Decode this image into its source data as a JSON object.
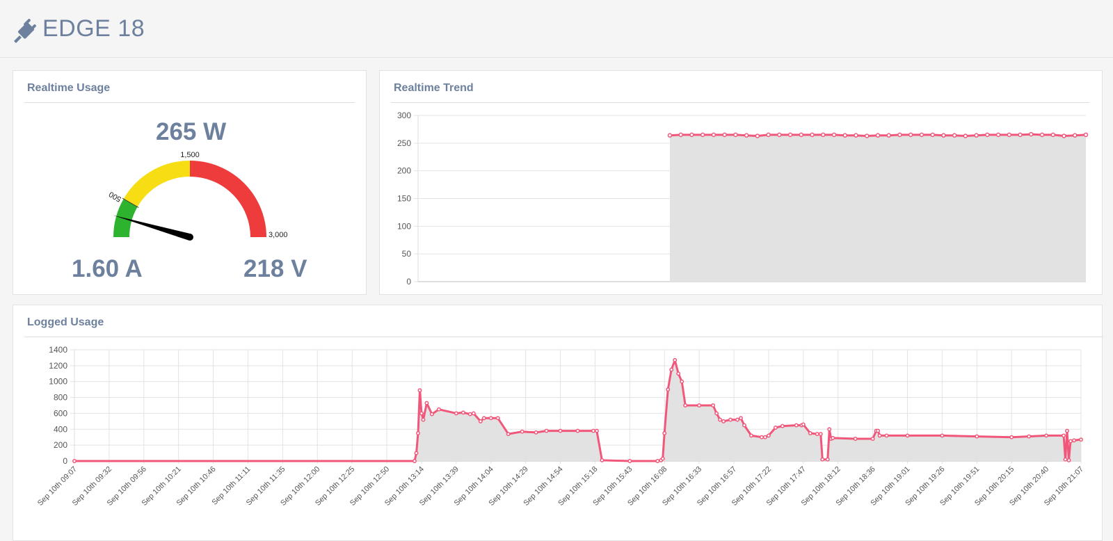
{
  "header": {
    "title": "EDGE 18",
    "icon": "plug-icon"
  },
  "realtime_usage": {
    "title": "Realtime Usage",
    "power": "265 W",
    "current": "1.60 A",
    "voltage": "218 V",
    "gauge": {
      "value": 265,
      "min": 0,
      "max": 3000,
      "tick_labels": [
        "500",
        "1,500",
        "3,000"
      ],
      "bands": [
        {
          "from": 0,
          "to": 500,
          "color": "#2db32d"
        },
        {
          "from": 500,
          "to": 1500,
          "color": "#f6dd14"
        },
        {
          "from": 1500,
          "to": 3000,
          "color": "#ee3b3b"
        }
      ]
    }
  },
  "realtime_trend": {
    "title": "Realtime Trend",
    "chart_data": {
      "type": "area",
      "ylim": [
        0,
        300
      ],
      "yticks": [
        "0",
        "50",
        "100",
        "150",
        "200",
        "250",
        "300"
      ],
      "x": [
        0,
        1,
        2,
        3,
        4,
        5,
        6,
        7,
        8,
        9,
        10,
        11,
        12,
        13,
        14,
        15,
        16,
        17,
        18,
        19,
        20,
        21,
        22,
        23,
        24,
        25,
        26,
        27,
        28,
        29,
        30,
        31,
        32,
        33,
        34,
        35,
        36,
        37,
        38,
        39,
        40,
        41,
        42,
        43,
        44,
        45,
        46,
        47,
        48,
        49,
        50,
        51,
        52,
        53,
        54,
        55,
        56,
        57,
        58,
        59,
        60,
        61
      ],
      "values": [
        null,
        null,
        null,
        null,
        null,
        null,
        null,
        null,
        null,
        null,
        null,
        null,
        null,
        null,
        null,
        null,
        null,
        null,
        null,
        null,
        null,
        null,
        null,
        264,
        265,
        265,
        265,
        265,
        265,
        265,
        264,
        263,
        265,
        265,
        265,
        265,
        265,
        265,
        265,
        264,
        264,
        263,
        264,
        264,
        265,
        265,
        265,
        265,
        264,
        264,
        263,
        264,
        265,
        265,
        265,
        265,
        266,
        265,
        265,
        263,
        264,
        265
      ],
      "color": "#f0577a",
      "fill": "#e2e2e2"
    }
  },
  "logged_usage": {
    "title": "Logged Usage",
    "chart_data": {
      "type": "area",
      "ylim": [
        0,
        1400
      ],
      "yticks": [
        "0",
        "200",
        "400",
        "600",
        "800",
        "1000",
        "1200",
        "1400"
      ],
      "categories": [
        "Sep 10th 09:07",
        "Sep 10th 09:32",
        "Sep 10th 09:56",
        "Sep 10th 10:21",
        "Sep 10th 10:46",
        "Sep 10th 11:11",
        "Sep 10th 11:35",
        "Sep 10th 12:00",
        "Sep 10th 12:25",
        "Sep 10th 12:50",
        "Sep 10th 13:14",
        "Sep 10th 13:39",
        "Sep 10th 14:04",
        "Sep 10th 14:29",
        "Sep 10th 14:54",
        "Sep 10th 15:18",
        "Sep 10th 15:43",
        "Sep 10th 16:08",
        "Sep 10th 16:33",
        "Sep 10th 16:57",
        "Sep 10th 17:22",
        "Sep 10th 17:47",
        "Sep 10th 18:12",
        "Sep 10th 18:36",
        "Sep 10th 19:01",
        "Sep 10th 19:26",
        "Sep 10th 19:51",
        "Sep 10th 20:15",
        "Sep 10th 20:40",
        "Sep 10th 21:07"
      ],
      "series": [
        {
          "x": [
            0,
            9.8,
            9.85,
            9.9,
            9.95,
            10.0,
            10.05,
            10.15,
            10.3,
            10.5,
            11.0,
            11.2,
            11.4,
            11.5,
            11.7,
            11.8,
            12.0,
            12.2,
            12.5,
            12.9,
            13.3,
            13.6,
            14.0,
            14.5,
            14.95,
            15.05,
            15.2,
            16.0,
            16.8,
            16.9,
            16.95,
            17.0,
            17.1,
            17.2,
            17.3,
            17.4,
            17.5,
            17.6,
            18.0,
            18.4,
            18.5,
            18.6,
            18.7,
            18.9,
            19.1,
            19.2,
            19.3,
            19.5,
            19.8,
            19.9,
            20.0,
            20.2,
            20.4,
            20.8,
            20.95,
            21.0,
            21.2,
            21.4,
            21.5,
            21.55,
            21.7,
            21.75,
            21.8,
            21.85,
            22.5,
            23.0,
            23.1,
            23.15,
            23.2,
            23.4,
            24.0,
            25.0,
            26.0,
            27.0,
            27.5,
            28.0,
            28.5,
            28.55,
            28.6,
            28.65,
            28.7,
            28.8,
            29.0
          ],
          "values": [
            0,
            0,
            100,
            350,
            890,
            600,
            520,
            730,
            590,
            650,
            600,
            610,
            590,
            600,
            500,
            540,
            540,
            540,
            340,
            370,
            360,
            380,
            380,
            380,
            380,
            380,
            10,
            0,
            0,
            10,
            30,
            350,
            900,
            1150,
            1270,
            1100,
            1000,
            700,
            700,
            700,
            600,
            520,
            500,
            520,
            520,
            540,
            450,
            320,
            300,
            300,
            320,
            420,
            440,
            450,
            450,
            460,
            350,
            340,
            340,
            20,
            20,
            400,
            280,
            290,
            280,
            280,
            380,
            380,
            320,
            320,
            320,
            320,
            310,
            300,
            310,
            320,
            320,
            20,
            380,
            10,
            250,
            260,
            270
          ],
          "color": "#f0577a",
          "fill": "#e2e2e2"
        }
      ]
    }
  }
}
